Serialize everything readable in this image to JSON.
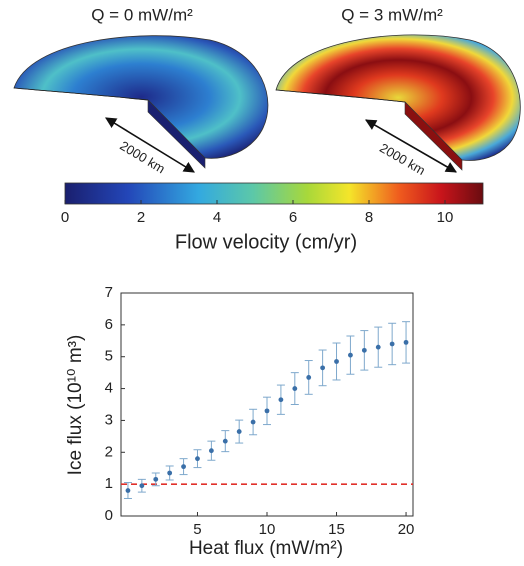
{
  "panels": [
    {
      "title": "Q = 0 mW/m²",
      "scale_label": "2000 km"
    },
    {
      "title": "Q = 3 mW/m²",
      "scale_label": "2000 km"
    }
  ],
  "colorbar": {
    "label": "Flow velocity (cm/yr)",
    "lim": [
      0,
      11
    ],
    "ticks": [
      0,
      2,
      4,
      6,
      8,
      10
    ]
  },
  "chart_data": {
    "type": "errorbar",
    "x": [
      0,
      1,
      2,
      3,
      4,
      5,
      6,
      7,
      8,
      9,
      10,
      11,
      12,
      13,
      14,
      15,
      16,
      17,
      18,
      19,
      20
    ],
    "values": [
      0.8,
      0.95,
      1.15,
      1.35,
      1.55,
      1.8,
      2.05,
      2.35,
      2.65,
      2.95,
      3.3,
      3.65,
      4.0,
      4.35,
      4.65,
      4.85,
      5.05,
      5.2,
      5.3,
      5.4,
      5.45
    ],
    "errors": [
      0.25,
      0.2,
      0.2,
      0.22,
      0.25,
      0.28,
      0.3,
      0.33,
      0.36,
      0.4,
      0.43,
      0.46,
      0.5,
      0.53,
      0.56,
      0.58,
      0.6,
      0.62,
      0.63,
      0.65,
      0.65
    ],
    "color": "#3a6fa8",
    "xlim": [
      -0.5,
      20.5
    ],
    "ylim": [
      0,
      7
    ],
    "xticks": [
      5,
      10,
      15,
      20
    ],
    "yticks": [
      0,
      1,
      2,
      3,
      4,
      5,
      6,
      7
    ],
    "xlabel": "Heat flux (mW/m²)",
    "ylabel": "Ice flux  (10¹⁰ m³)",
    "reference_line": {
      "value": 1,
      "color": "#e0302a"
    }
  }
}
